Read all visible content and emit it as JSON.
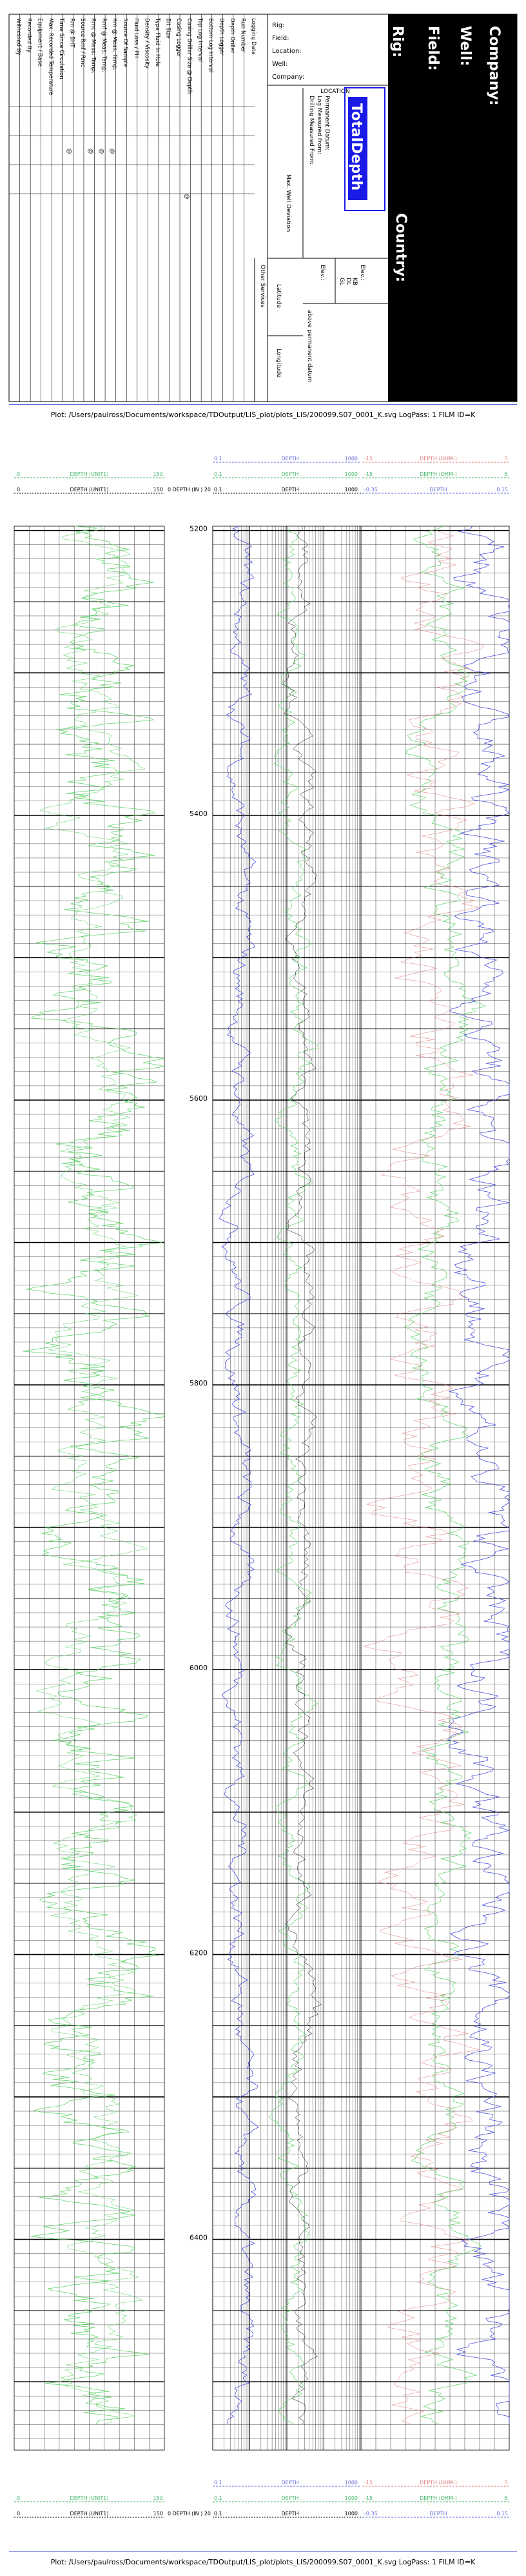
{
  "header": {
    "side_labels": {
      "company": "Company:",
      "well": "Well:",
      "field": "Field:",
      "rig": "Rig:",
      "country": "Country:"
    },
    "info_labels": [
      "Rig:",
      "Field:",
      "Location:",
      "Well:",
      "Company:"
    ],
    "brand": "TotalDepth",
    "location_title": "LOCATION",
    "datum_lines": [
      "Permanent Datum:",
      "Log Measured From:",
      "Drilling Measured From:"
    ],
    "max_well_deviation": "Max. Well Deviation",
    "elev_labels": [
      "Elev.:",
      "Elev.:"
    ],
    "elev_codes": [
      "KB",
      "DL",
      "GL"
    ],
    "elev_note": "above permanent datum",
    "services_labels": [
      "Other Services",
      "Latitude",
      "Longitude"
    ],
    "logging_rows": [
      "Logging Date",
      "Run Number",
      "Depth Driller",
      "Depth Logger",
      "Bottom Log Interval",
      "Top Log Interval",
      "Casing Driller Size @ Depth",
      "Casing Logger",
      "Bit Size",
      "Type Fluid In Hole",
      "Density / Viscosity",
      "Fluid Loss / PH",
      "Source Of Sample",
      "Rm @ Meas. Temp.",
      "Rmf @ Meas. Temp.",
      "Rmc @ Meas. Temp.",
      "Source Rmf / Rmc",
      "Rm @ BHT",
      "Time Since Circulation",
      "Max. Recorded Temperature",
      "Equipment / Base",
      "Recorded By",
      "Witnessed By"
    ],
    "at_symbol": "@"
  },
  "plot": {
    "title": "Plot: /Users/paulross/Documents/workspace/TDOutput/LIS_plot/plots_LIS/200099.S07_0001_K.svg LogPass: 1 FILM ID=K"
  },
  "tracks": {
    "left_scale": {
      "label": "DEPTH (UNIT1)",
      "min": "0",
      "max": "150"
    },
    "left_scale2": {
      "label": "DEPTH (UNIT1)",
      "min": "0",
      "max": "150"
    },
    "middle_top": {
      "label": "DEPTH",
      "min": "0.1",
      "max": "1000"
    },
    "middle_mid": {
      "label": "DEPTH",
      "min": "0.1",
      "max": "1000"
    },
    "right_a": {
      "label": "DEPTH (OHM-)",
      "min": "-15",
      "max": "5"
    },
    "right_b": {
      "label": "DEPTH",
      "min": "-0.35",
      "max": "0.15"
    },
    "center_scale": {
      "label": "DEPTH (IN )",
      "min": "0",
      "max": "20"
    },
    "depth_labels": [
      "5200",
      "5400",
      "5600",
      "5800",
      "6000",
      "6200",
      "6400"
    ]
  },
  "colors": {
    "blue_curve": "#4a4fe0",
    "green_curve": "#5fd36a",
    "red_curve": "#e07a7a",
    "scale_green": "#49b86d",
    "scale_blue": "#5b66d8"
  }
}
